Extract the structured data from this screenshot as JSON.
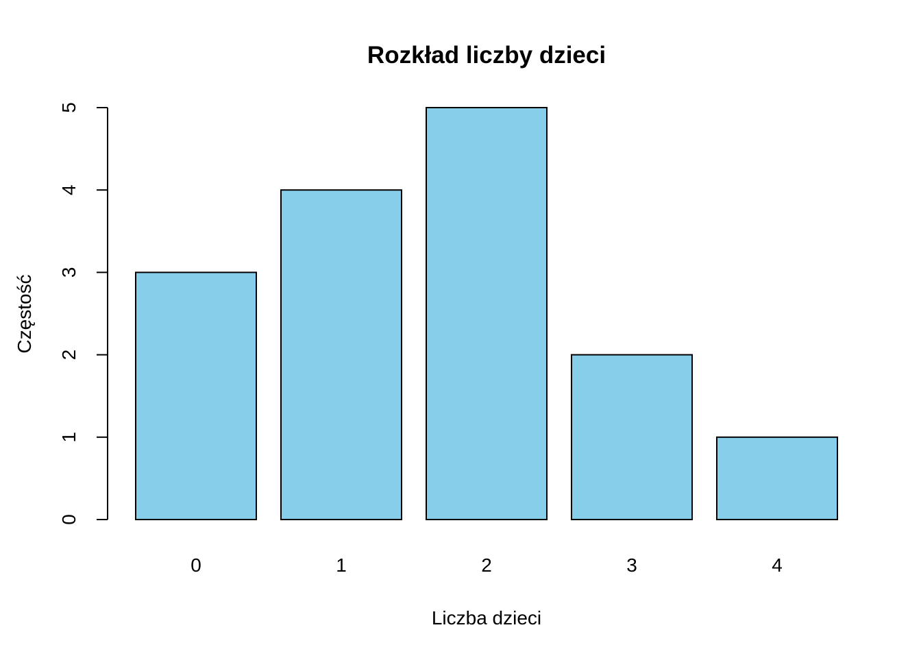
{
  "chart_data": {
    "type": "bar",
    "title": "Rozkład liczby dzieci",
    "xlabel": "Liczba dzieci",
    "ylabel": "Częstość",
    "categories": [
      "0",
      "1",
      "2",
      "3",
      "4"
    ],
    "values": [
      3,
      4,
      5,
      2,
      1
    ],
    "ylim": [
      0,
      5
    ],
    "yticks": [
      "0",
      "1",
      "2",
      "3",
      "4",
      "5"
    ],
    "grid": false,
    "bar_color": "#87CEEB",
    "border_color": "#000000"
  }
}
